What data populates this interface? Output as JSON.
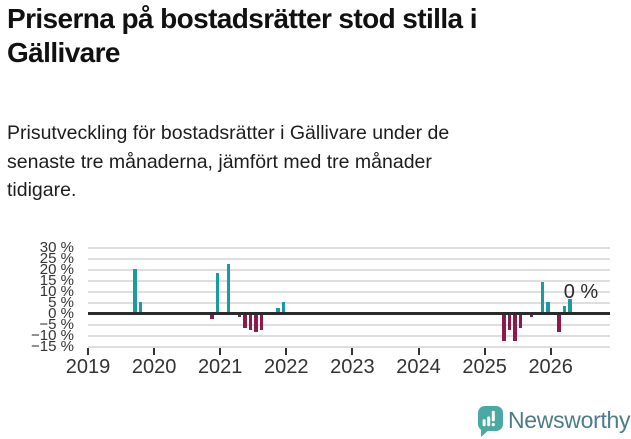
{
  "header": {
    "title": "Priserna på bostadsrätter stod stilla i Gällivare",
    "title_lines": [
      "Priserna på bostadsrätter stod stilla i",
      "Gällivare"
    ],
    "subtitle": "Prisutveckling för bostadsrätter i Gällivare under de senaste tre månaderna, jämfört med tre månader tidigare.",
    "subtitle_lines": [
      "Prisutveckling för bostadsrätter i Gällivare under de",
      "senaste tre månaderna, jämfört med tre månader",
      "tidigare."
    ]
  },
  "chart_data": {
    "type": "bar",
    "title": "",
    "xlabel": "",
    "ylabel": "",
    "x_unit": "month",
    "points": [
      [
        "2019-09",
        20
      ],
      [
        "2019-10",
        5
      ],
      [
        "2020-11",
        -2
      ],
      [
        "2020-12",
        18
      ],
      [
        "2021-02",
        22
      ],
      [
        "2021-04",
        -1
      ],
      [
        "2021-05",
        -6
      ],
      [
        "2021-06",
        -7
      ],
      [
        "2021-07",
        -8
      ],
      [
        "2021-08",
        -7
      ],
      [
        "2021-11",
        2
      ],
      [
        "2021-12",
        5
      ],
      [
        "2025-04",
        -12
      ],
      [
        "2025-05",
        -7
      ],
      [
        "2025-06",
        -12
      ],
      [
        "2025-07",
        -6
      ],
      [
        "2025-09",
        -1
      ],
      [
        "2025-11",
        14
      ],
      [
        "2025-12",
        5
      ],
      [
        "2026-02",
        -8
      ],
      [
        "2026-03",
        3
      ],
      [
        "2026-04",
        6
      ],
      [
        "2026-06",
        0
      ]
    ],
    "ylim": [
      -15,
      30
    ],
    "yticks": [
      30,
      25,
      20,
      15,
      10,
      5,
      0,
      -5,
      -10,
      -15
    ],
    "ytick_labels": [
      "30 %",
      "25 %",
      "20 %",
      "15 %",
      "10 %",
      "5 %",
      "0 %",
      "−5 %",
      "−10 %",
      "−15 %"
    ],
    "xticks": [
      2019,
      2020,
      2021,
      2022,
      2023,
      2024,
      2025,
      2026
    ],
    "xtick_labels": [
      "2019",
      "2020",
      "2021",
      "2022",
      "2023",
      "2024",
      "2025",
      "2026"
    ],
    "xlim": [
      "2019-01",
      "2026-11"
    ],
    "grid": true,
    "legend": "none",
    "annotation": {
      "text": "0 %",
      "x": "2026-06"
    },
    "positive_color": "#1a9c9c",
    "negative_color": "#8c1b4d",
    "axis_color": "#333333",
    "gridline_color": "#dedede",
    "zero_line_color": "#2b2b2b"
  },
  "footer": {
    "brand": "Newsworthy",
    "logo_icon": "newsworthy-bar-chart-bubble-icon",
    "icon_color": "#4aa9a3",
    "text_color": "#4c7c8c"
  }
}
